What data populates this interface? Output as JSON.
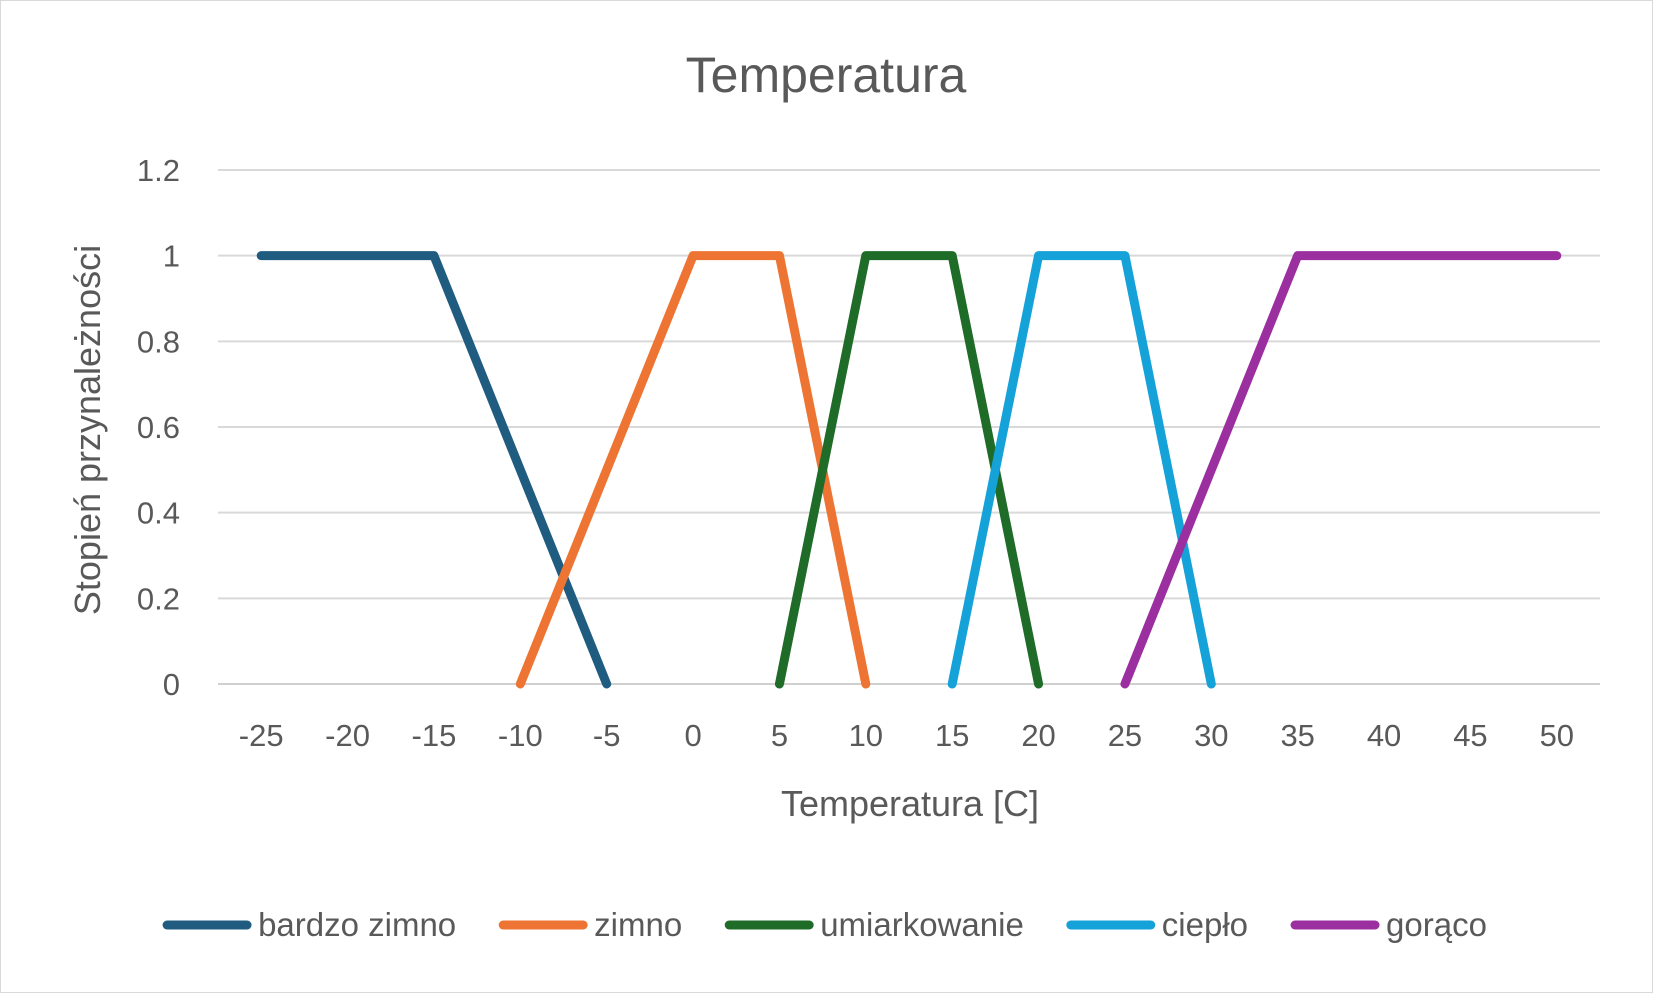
{
  "chart_data": {
    "type": "line",
    "title": "Temperatura",
    "xlabel": "Temperatura [C]",
    "ylabel": "Stopień przynależności",
    "x_ticks": [
      "-25",
      "-20",
      "-15",
      "-10",
      "-5",
      "0",
      "5",
      "10",
      "15",
      "20",
      "25",
      "30",
      "35",
      "40",
      "45",
      "50"
    ],
    "y_ticks": [
      "0",
      "0.2",
      "0.4",
      "0.6",
      "0.8",
      "1",
      "1.2"
    ],
    "xlim": [
      -27.5,
      52.5
    ],
    "ylim": [
      0,
      1.2
    ],
    "grid": true,
    "legend": "bottom",
    "series": [
      {
        "name": "bardzo zimno",
        "color": "#1f5c80",
        "points": [
          [
            -25,
            1
          ],
          [
            -15,
            1
          ],
          [
            -5,
            0
          ]
        ]
      },
      {
        "name": "zimno",
        "color": "#ed7432",
        "points": [
          [
            -10,
            0
          ],
          [
            0,
            1
          ],
          [
            5,
            1
          ],
          [
            10,
            0
          ]
        ]
      },
      {
        "name": "umiarkowanie",
        "color": "#1f6b28",
        "points": [
          [
            5,
            0
          ],
          [
            10,
            1
          ],
          [
            15,
            1
          ],
          [
            20,
            0
          ]
        ]
      },
      {
        "name": "ciepło",
        "color": "#15a2d9",
        "points": [
          [
            15,
            0
          ],
          [
            20,
            1
          ],
          [
            25,
            1
          ],
          [
            30,
            0
          ]
        ]
      },
      {
        "name": "gorąco",
        "color": "#9b2fa0",
        "points": [
          [
            25,
            0
          ],
          [
            35,
            1
          ],
          [
            50,
            1
          ]
        ]
      }
    ]
  }
}
